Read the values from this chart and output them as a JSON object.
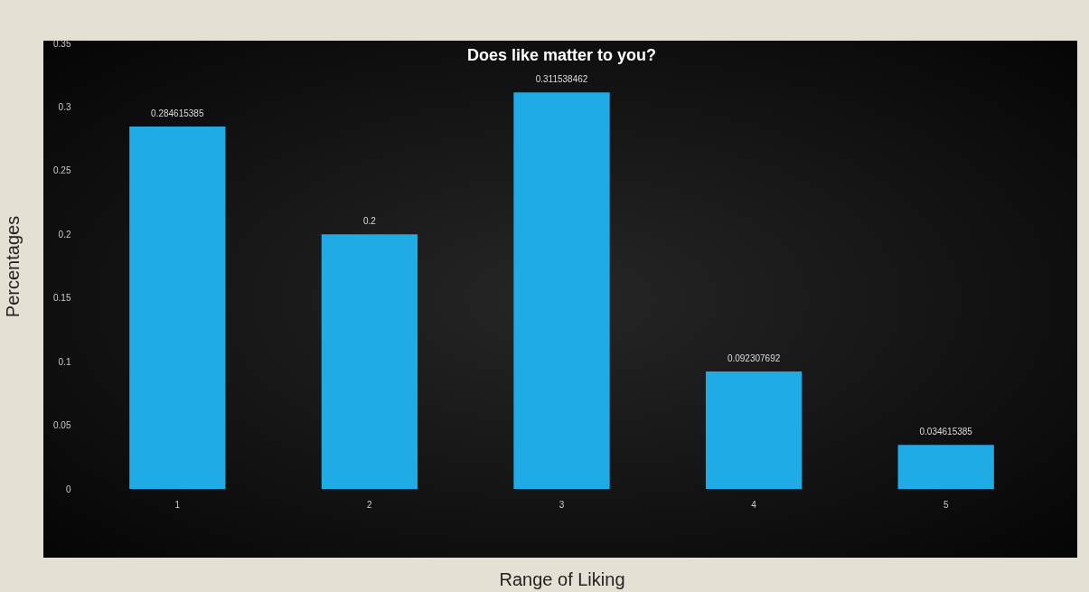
{
  "chart_data": {
    "type": "bar",
    "title": "Does like matter to you?",
    "xlabel": "Range of Liking",
    "ylabel": "Percentages",
    "categories": [
      "1",
      "2",
      "3",
      "4",
      "5"
    ],
    "values": [
      0.284615385,
      0.2,
      0.311538462,
      0.092307692,
      0.034615385
    ],
    "color": "#1eabe6",
    "ylim": [
      0,
      0.35
    ],
    "yticks": [
      0,
      0.05,
      0.1,
      0.15,
      0.2,
      0.25,
      0.3,
      0.35
    ],
    "data_labels": true,
    "grid": false
  }
}
